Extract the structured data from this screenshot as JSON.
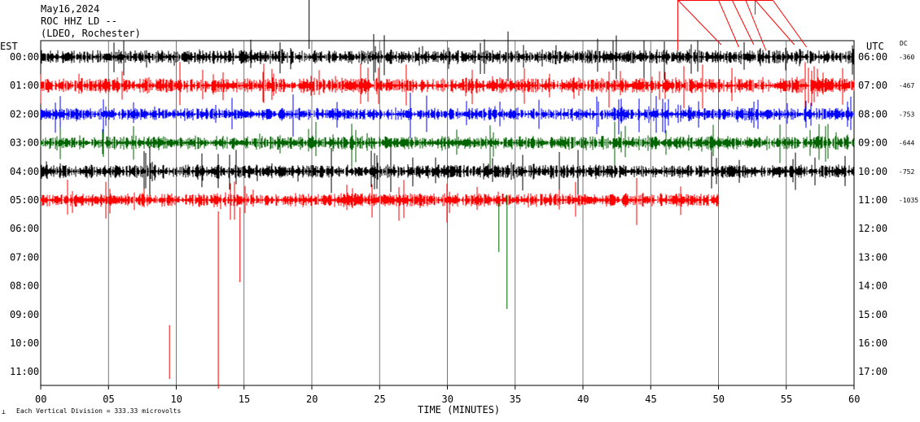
{
  "header": {
    "date": "May16,2024",
    "station": "ROC HHZ LD --",
    "location": "(LDEO, Rochester)"
  },
  "chart_data": {
    "type": "line",
    "title": "May16,2024",
    "xlabel": "TIME (MINUTES)",
    "left_axis_title": "EST",
    "right_axis_title": "UTC",
    "dc_title": "DC",
    "xlim": [
      0,
      60
    ],
    "x_ticks": [
      "00",
      "05",
      "10",
      "15",
      "20",
      "25",
      "30",
      "35",
      "40",
      "45",
      "50",
      "55",
      "60"
    ],
    "rows_est": [
      "00:00",
      "01:00",
      "02:00",
      "03:00",
      "04:00",
      "05:00",
      "06:00",
      "07:00",
      "08:00",
      "09:00",
      "10:00",
      "11:00"
    ],
    "rows_utc": [
      "06:00",
      "07:00",
      "08:00",
      "09:00",
      "10:00",
      "11:00",
      "12:00",
      "13:00",
      "14:00",
      "15:00",
      "16:00",
      "17:00"
    ],
    "dc_values": [
      "-360",
      "-467",
      "-753",
      "-644",
      "-752",
      "-1035"
    ],
    "footer": "Each Vertical Division =  333.33 microvolts",
    "grid": "vertical lines every 5 minutes",
    "series": [
      {
        "row": 0,
        "color": "#000000",
        "end_minute": 60,
        "amplitude": 1.0
      },
      {
        "row": 1,
        "color": "#ff0000",
        "end_minute": 60,
        "amplitude": 1.1
      },
      {
        "row": 2,
        "color": "#0000ff",
        "end_minute": 60,
        "amplitude": 0.9
      },
      {
        "row": 3,
        "color": "#006400",
        "end_minute": 60,
        "amplitude": 1.0
      },
      {
        "row": 4,
        "color": "#000000",
        "end_minute": 60,
        "amplitude": 1.0
      },
      {
        "row": 5,
        "color": "#ff0000",
        "end_minute": 50,
        "amplitude": 1.0
      }
    ]
  }
}
